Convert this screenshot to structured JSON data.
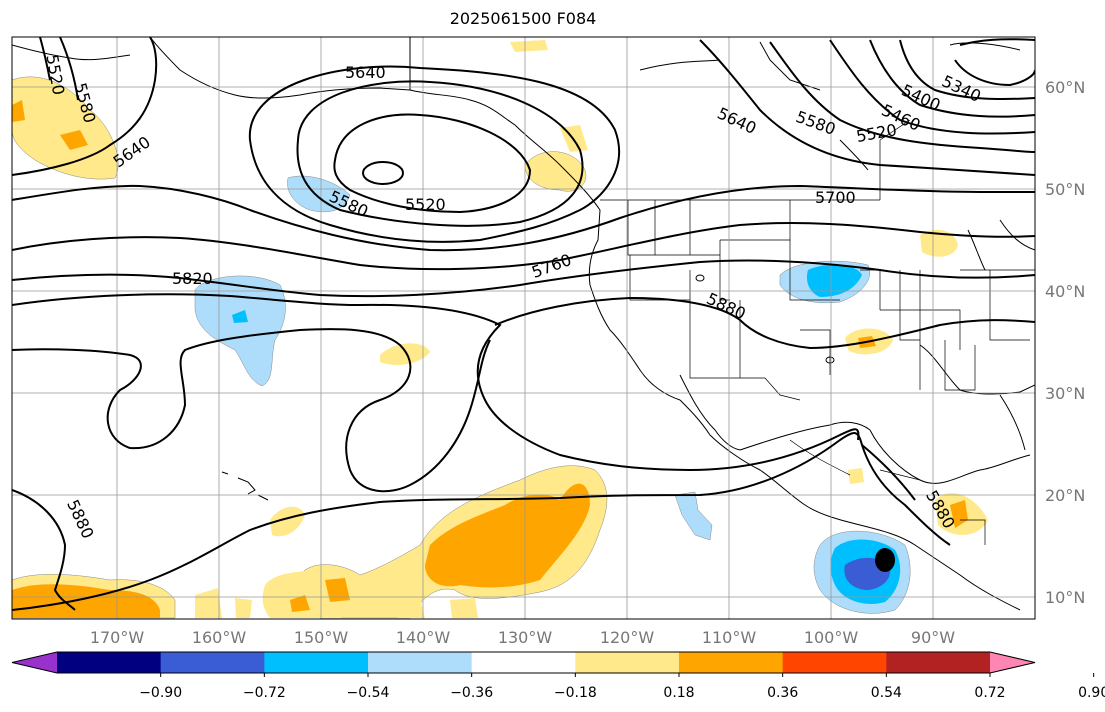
{
  "title": "2025061500 F084",
  "map": {
    "lat_labels": [
      "60°N",
      "50°N",
      "40°N",
      "30°N",
      "20°N",
      "10°N"
    ],
    "lon_labels": [
      "170°W",
      "160°W",
      "150°W",
      "140°W",
      "130°W",
      "120°W",
      "110°W",
      "100°W",
      "90°W"
    ],
    "contour_labels": [
      "5520",
      "5580",
      "5640",
      "5640",
      "5520",
      "5580",
      "5640",
      "5580",
      "5520",
      "5460",
      "5400",
      "5340",
      "5700",
      "5760",
      "5820",
      "5880",
      "5880",
      "5880"
    ],
    "colors": {
      "land_border": "#000000",
      "grid": "#999999",
      "contour": "#000000",
      "pos_light": "#ffe98a",
      "pos_mid": "#ffa500",
      "neg_light": "#aeddfc",
      "neg_mid": "#00bfff",
      "neg_dark": "#3a5cd4",
      "neg_darkest": "#000000"
    }
  },
  "colorbar": {
    "ticks": [
      "−0.90",
      "−0.72",
      "−0.54",
      "−0.36",
      "−0.18",
      "0.18",
      "0.36",
      "0.54",
      "0.72",
      "0.90"
    ],
    "colors": [
      "#9932cc",
      "#000080",
      "#3a5cd4",
      "#00bfff",
      "#aeddfc",
      "#ffffff",
      "#ffe98a",
      "#ffa500",
      "#ff4500",
      "#b22222",
      "#ff85b3"
    ]
  }
}
